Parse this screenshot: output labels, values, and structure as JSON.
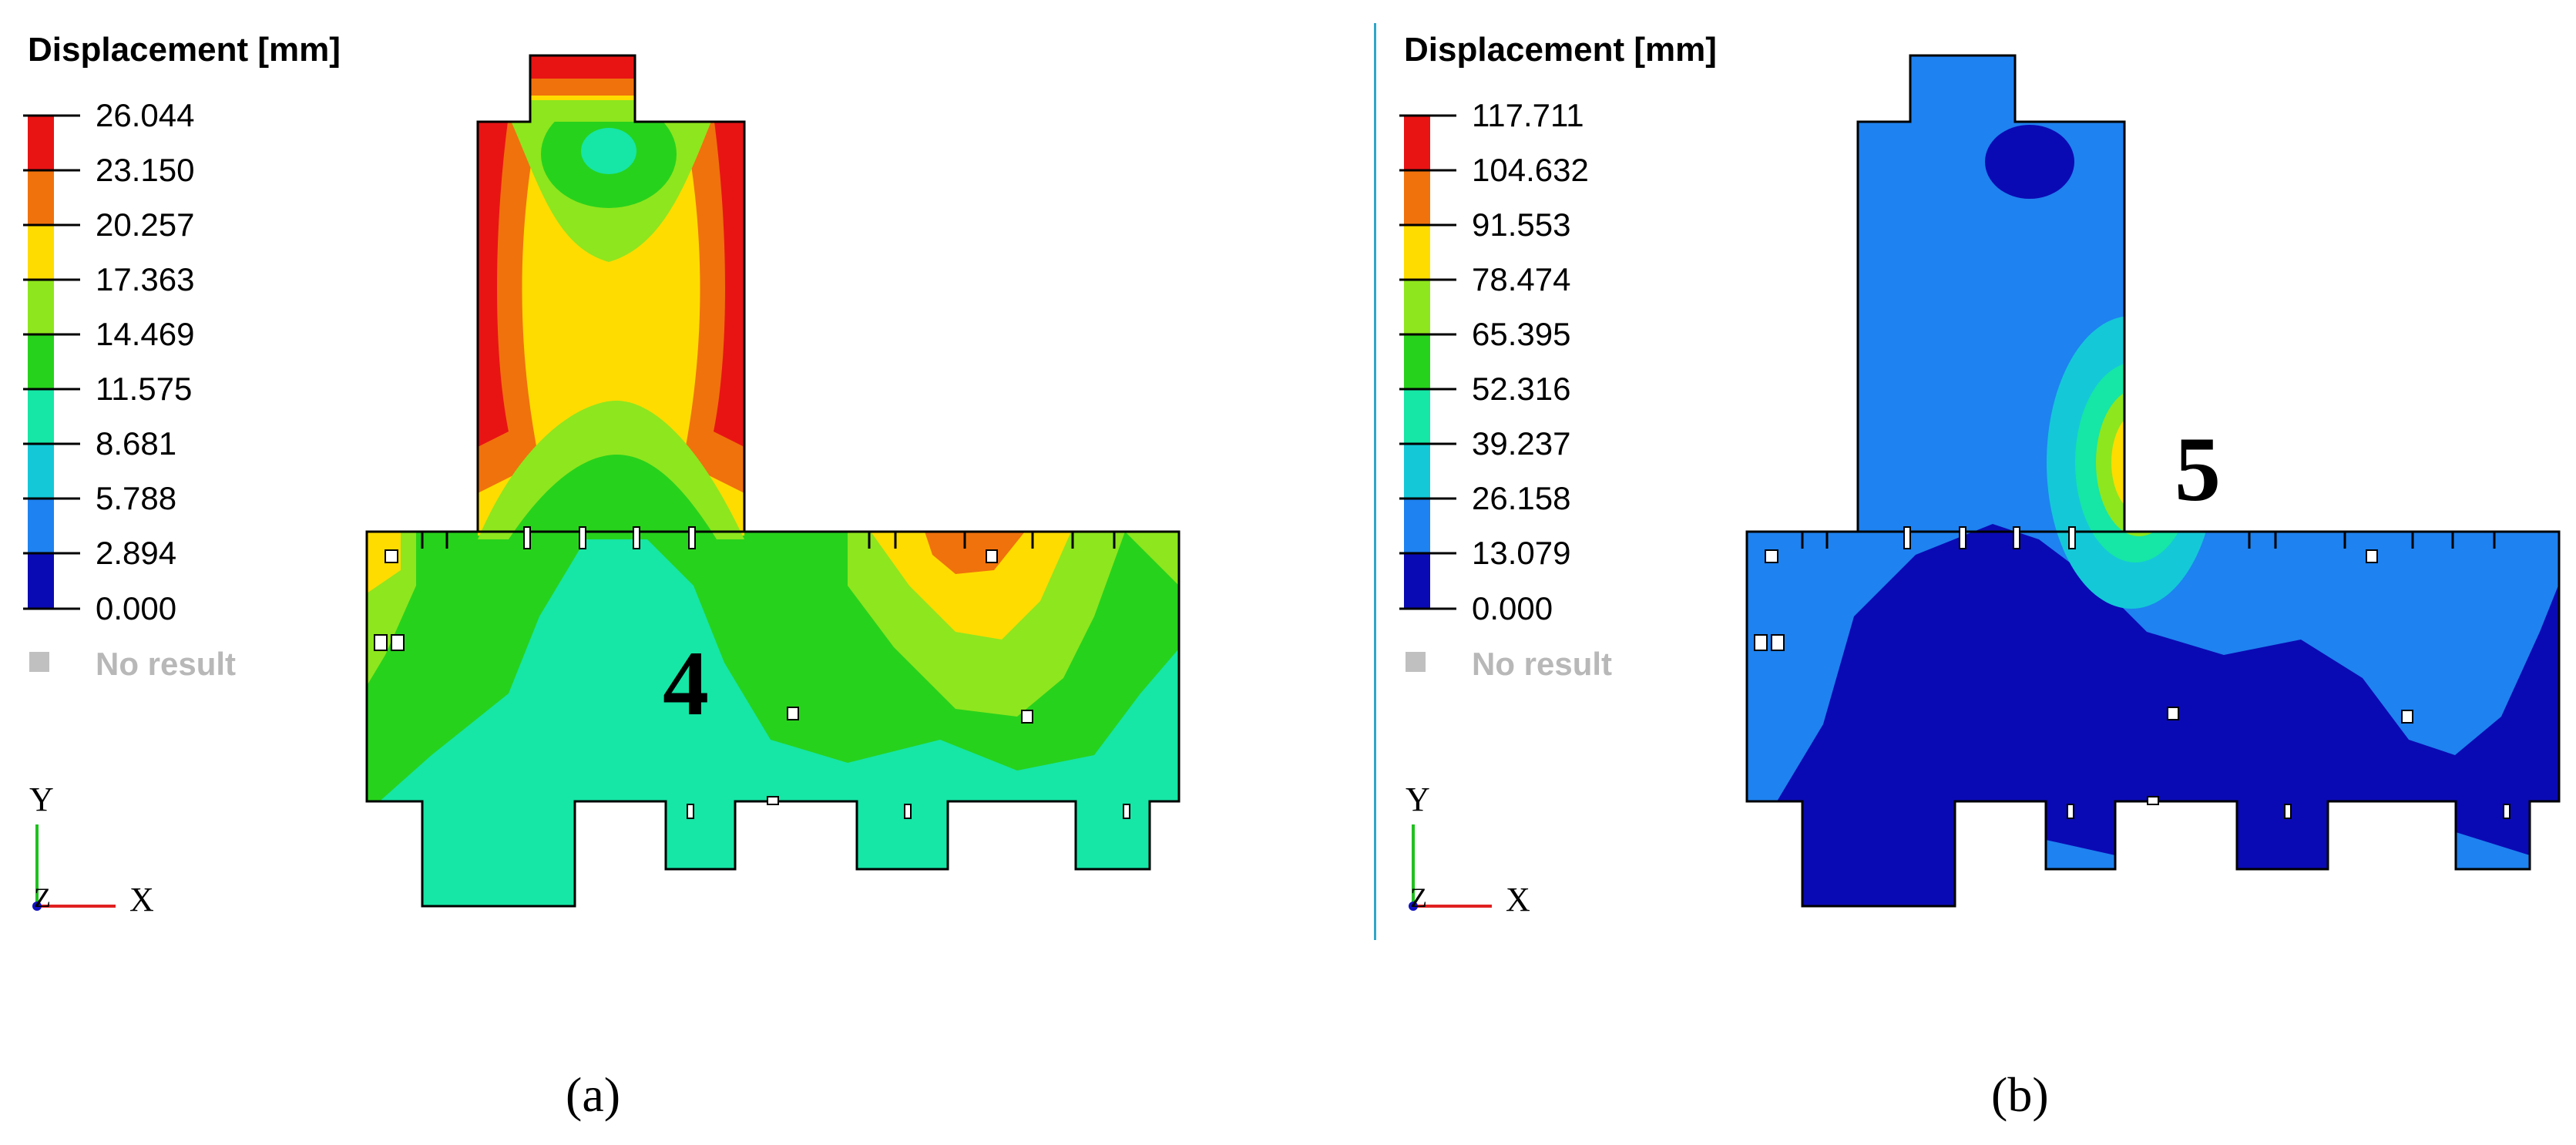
{
  "panels": [
    {
      "id": "a",
      "legend_title": "Displacement [mm]",
      "ticks": [
        "26.044",
        "23.150",
        "20.257",
        "17.363",
        "14.469",
        "11.575",
        "8.681",
        "5.788",
        "2.894",
        "0.000"
      ],
      "no_result": "No result",
      "region_label": "4",
      "caption": "(a)"
    },
    {
      "id": "b",
      "legend_title": "Displacement [mm]",
      "ticks": [
        "117.711",
        "104.632",
        "91.553",
        "78.474",
        "65.395",
        "52.316",
        "39.237",
        "26.158",
        "13.079",
        "0.000"
      ],
      "no_result": "No result",
      "region_label": "5",
      "caption": "(b)"
    }
  ],
  "axes": {
    "y": "Y",
    "z": "Z",
    "x": "X"
  },
  "colors": {
    "scale": [
      "#e81414",
      "#f0720c",
      "#ffdc00",
      "#8ee61e",
      "#27d21c",
      "#16e6a6",
      "#14c8d8",
      "#1e82f0",
      "#0a0ab4"
    ],
    "no_result": "#c0c0c0",
    "divider": "#2ea6c8"
  }
}
